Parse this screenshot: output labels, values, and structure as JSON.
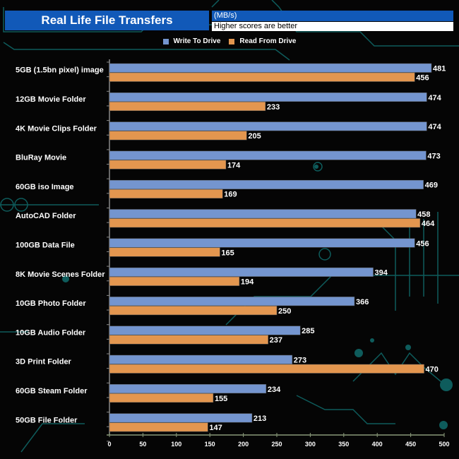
{
  "header": {
    "title": "Real Life File Transfers",
    "unit": "(MB/s)",
    "note": "Higher scores are better"
  },
  "colors": {
    "write": "#7495cf",
    "read": "#e3964f",
    "title_bg": "#1159b8",
    "circuit": "#0e5c5c"
  },
  "chart_data": {
    "type": "bar",
    "orientation": "horizontal",
    "title": "Real Life File Transfers",
    "subtitle": "Higher scores are better",
    "xlabel": "(MB/s)",
    "ylabel": "",
    "xlim": [
      0,
      500
    ],
    "xticks": [
      0,
      50,
      100,
      150,
      200,
      250,
      300,
      350,
      400,
      450,
      500
    ],
    "grid": false,
    "legend": "top-center",
    "categories": [
      "5GB (1.5bn pixel) image",
      "12GB Movie Folder",
      "4K Movie Clips Folder",
      "BluRay Movie",
      "60GB iso Image",
      "AutoCAD Folder",
      "100GB Data File",
      "8K Movie Scenes Folder",
      "10GB Photo Folder",
      "10GB Audio Folder",
      "3D Print Folder",
      "60GB Steam Folder",
      "50GB File Folder"
    ],
    "series": [
      {
        "name": "Write To  Drive",
        "values": [
          481,
          474,
          474,
          473,
          469,
          458,
          456,
          394,
          366,
          285,
          273,
          234,
          213
        ]
      },
      {
        "name": "Read From  Drive",
        "values": [
          456,
          233,
          205,
          174,
          169,
          464,
          165,
          194,
          250,
          237,
          470,
          155,
          147
        ]
      }
    ]
  }
}
